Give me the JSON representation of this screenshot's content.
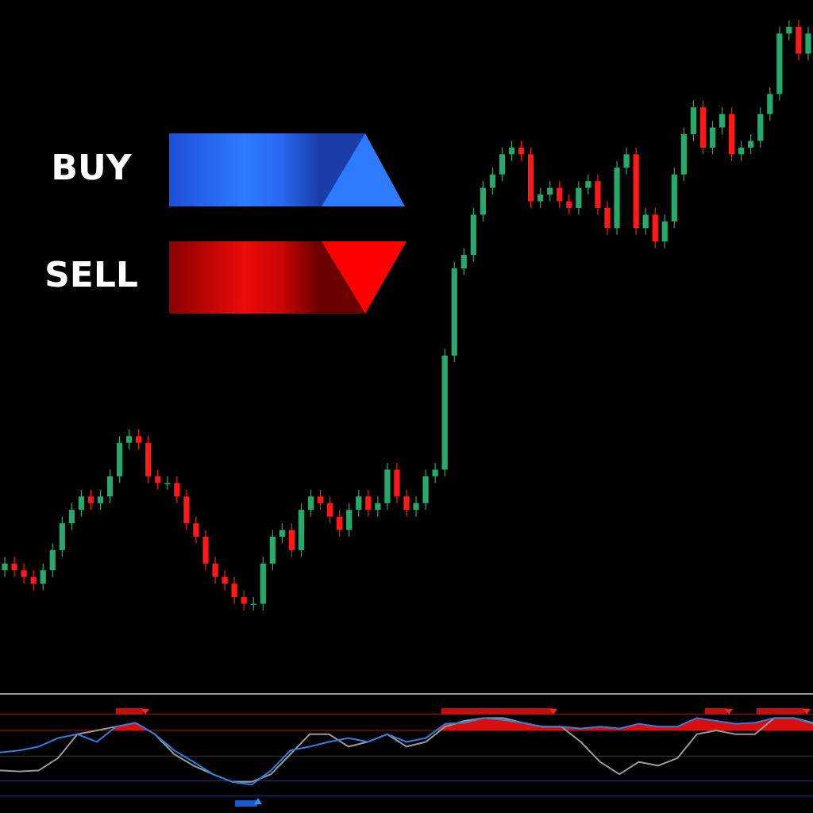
{
  "chart_data": [
    {
      "type": "candlestick",
      "annotations": [
        "BUY",
        "SELL"
      ],
      "up_color": "#26a96c",
      "down_color": "#ff1a1a",
      "ylim": [
        0,
        100
      ],
      "open": [
        15,
        16,
        15,
        14,
        13,
        15,
        18,
        22,
        24,
        26,
        25,
        26,
        29,
        34,
        35,
        34,
        29,
        28,
        28,
        26,
        22,
        20,
        16,
        14,
        13,
        11,
        10,
        10,
        16,
        20,
        21,
        18,
        24,
        26,
        25,
        23,
        21,
        24,
        26,
        24,
        25,
        30,
        26,
        24,
        25,
        29,
        30,
        47,
        60,
        62,
        68,
        72,
        74,
        77,
        78,
        77,
        70,
        71,
        72,
        70,
        69,
        72,
        73,
        69,
        66,
        75,
        77,
        66,
        68,
        64,
        67,
        74,
        80,
        84,
        78,
        81,
        83,
        77,
        78,
        79,
        83,
        86,
        95,
        96,
        92
      ],
      "high": [
        17,
        17,
        16,
        15,
        16,
        19,
        23,
        25,
        27,
        27,
        27,
        30,
        35,
        36,
        36,
        35,
        30,
        29,
        29,
        27,
        23,
        21,
        17,
        15,
        14,
        12,
        11,
        17,
        21,
        22,
        22,
        25,
        27,
        27,
        26,
        24,
        25,
        27,
        27,
        26,
        31,
        31,
        27,
        26,
        30,
        31,
        48,
        61,
        63,
        69,
        73,
        75,
        78,
        79,
        79,
        78,
        72,
        73,
        73,
        71,
        73,
        74,
        74,
        70,
        76,
        78,
        78,
        69,
        69,
        68,
        75,
        81,
        85,
        85,
        82,
        84,
        84,
        79,
        80,
        84,
        87,
        96,
        97,
        97,
        96
      ],
      "low": [
        14,
        14,
        13,
        12,
        12,
        14,
        17,
        21,
        23,
        24,
        24,
        25,
        28,
        33,
        33,
        28,
        27,
        27,
        25,
        21,
        19,
        15,
        13,
        12,
        10,
        9,
        9,
        9,
        15,
        19,
        17,
        17,
        23,
        24,
        22,
        20,
        20,
        23,
        23,
        23,
        24,
        25,
        23,
        23,
        24,
        28,
        29,
        46,
        59,
        61,
        67,
        71,
        73,
        76,
        76,
        69,
        69,
        70,
        69,
        68,
        68,
        71,
        68,
        65,
        65,
        74,
        65,
        65,
        63,
        63,
        66,
        73,
        79,
        77,
        77,
        80,
        76,
        76,
        77,
        78,
        82,
        85,
        94,
        91,
        91
      ],
      "close": [
        16,
        15,
        14,
        13,
        15,
        18,
        22,
        24,
        26,
        25,
        26,
        29,
        34,
        35,
        34,
        29,
        28,
        28,
        26,
        22,
        20,
        16,
        14,
        13,
        11,
        10,
        10,
        16,
        20,
        21,
        18,
        24,
        26,
        25,
        23,
        21,
        24,
        26,
        24,
        25,
        30,
        26,
        24,
        25,
        29,
        30,
        47,
        60,
        62,
        68,
        72,
        74,
        77,
        78,
        77,
        70,
        71,
        72,
        70,
        69,
        72,
        73,
        69,
        66,
        75,
        77,
        66,
        68,
        64,
        67,
        74,
        80,
        84,
        78,
        81,
        83,
        77,
        78,
        79,
        83,
        86,
        95,
        96,
        92,
        95
      ]
    },
    {
      "type": "line",
      "ylim": [
        0,
        100
      ],
      "levels": [
        92,
        75,
        48,
        22,
        6
      ],
      "level_colors": [
        "#b01010",
        "#b01010",
        "#3a3a3a",
        "#1a3a8a",
        "#1a3a8a"
      ],
      "fill_level": 75,
      "fill_color": "#ff1010",
      "series": [
        {
          "color": "#9a9a9a",
          "values": [
            33,
            32,
            33,
            46,
            71,
            75,
            79,
            83,
            71,
            50,
            38,
            29,
            21,
            21,
            29,
            50,
            71,
            71,
            58,
            63,
            71,
            58,
            63,
            79,
            85,
            88,
            88,
            83,
            79,
            79,
            63,
            42,
            29,
            42,
            38,
            46,
            71,
            75,
            71,
            71,
            88,
            88,
            83
          ]
        },
        {
          "color": "#2f7fe0",
          "values": [
            52,
            54,
            58,
            67,
            71,
            63,
            79,
            83,
            71,
            54,
            42,
            29,
            21,
            18,
            33,
            54,
            58,
            63,
            67,
            63,
            71,
            63,
            67,
            82,
            83,
            88,
            86,
            83,
            79,
            79,
            77,
            79,
            77,
            82,
            79,
            79,
            88,
            85,
            82,
            83,
            88,
            88,
            82
          ]
        }
      ]
    }
  ]
}
